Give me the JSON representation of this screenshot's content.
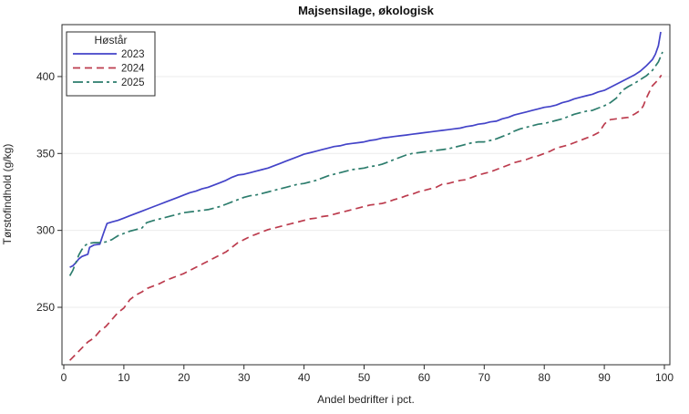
{
  "chart_data": {
    "type": "line",
    "title": "Majsensilage, økologisk",
    "xlabel": "Andel bedrifter i pct.",
    "ylabel": "Tørstofindhold (g/kg)",
    "xlim": [
      0,
      100
    ],
    "ylim": [
      212,
      434
    ],
    "x_ticks": [
      0,
      10,
      20,
      30,
      40,
      50,
      60,
      70,
      80,
      90,
      100
    ],
    "y_ticks": [
      250,
      300,
      350,
      400
    ],
    "grid": "horizontal-only",
    "legend_title": "Høstår",
    "legend_position": "top-left-inside",
    "colors": {
      "axis_line": "#2b2b2b",
      "grid_line": "#ebebeb",
      "text": "#262626",
      "background": "#ffffff",
      "series_2023": "#4343c8",
      "series_2024": "#bc3c4e",
      "series_2025": "#2d7d6d"
    },
    "series": [
      {
        "name": "2023",
        "color": "#4343c8",
        "dash": "solid",
        "points": [
          [
            1,
            276
          ],
          [
            1.5,
            277
          ],
          [
            2,
            279
          ],
          [
            2.5,
            281.5
          ],
          [
            3,
            283
          ],
          [
            4,
            284.5
          ],
          [
            4.3,
            289
          ],
          [
            5,
            290.5
          ],
          [
            6,
            291
          ],
          [
            6.6,
            298
          ],
          [
            7.2,
            304.5
          ],
          [
            8,
            305.5
          ],
          [
            9,
            306.5
          ],
          [
            10,
            308
          ],
          [
            11,
            309.5
          ],
          [
            12,
            311
          ],
          [
            13,
            312.5
          ],
          [
            14,
            314
          ],
          [
            15,
            315.5
          ],
          [
            16,
            317
          ],
          [
            17,
            318.5
          ],
          [
            18,
            320
          ],
          [
            19,
            321.5
          ],
          [
            20,
            323
          ],
          [
            21,
            324.5
          ],
          [
            22,
            325.5
          ],
          [
            23,
            327
          ],
          [
            24,
            328
          ],
          [
            25,
            329.5
          ],
          [
            26,
            331
          ],
          [
            27,
            332.5
          ],
          [
            28,
            334.5
          ],
          [
            29,
            336
          ],
          [
            30,
            336.5
          ],
          [
            31,
            337.5
          ],
          [
            32,
            338.5
          ],
          [
            33,
            339.5
          ],
          [
            34,
            340.5
          ],
          [
            35,
            342
          ],
          [
            36,
            343.5
          ],
          [
            37,
            345
          ],
          [
            38,
            346.5
          ],
          [
            39,
            348
          ],
          [
            40,
            349.5
          ],
          [
            41,
            350.5
          ],
          [
            42,
            351.5
          ],
          [
            43,
            352.5
          ],
          [
            44,
            353.5
          ],
          [
            45,
            354.5
          ],
          [
            46,
            355
          ],
          [
            47,
            356
          ],
          [
            48,
            356.5
          ],
          [
            49,
            357
          ],
          [
            50,
            357.5
          ],
          [
            51,
            358.5
          ],
          [
            52,
            359
          ],
          [
            53,
            360
          ],
          [
            54,
            360.5
          ],
          [
            55,
            361
          ],
          [
            56,
            361.5
          ],
          [
            57,
            362
          ],
          [
            58,
            362.5
          ],
          [
            59,
            363
          ],
          [
            60,
            363.5
          ],
          [
            61,
            364
          ],
          [
            62,
            364.5
          ],
          [
            63,
            365
          ],
          [
            64,
            365.5
          ],
          [
            65,
            366
          ],
          [
            66,
            366.5
          ],
          [
            67,
            367.5
          ],
          [
            68,
            368
          ],
          [
            69,
            369
          ],
          [
            70,
            369.5
          ],
          [
            71,
            370.5
          ],
          [
            72,
            371
          ],
          [
            73,
            372.5
          ],
          [
            74,
            373.5
          ],
          [
            75,
            375
          ],
          [
            76,
            376
          ],
          [
            77,
            377
          ],
          [
            78,
            378
          ],
          [
            79,
            379
          ],
          [
            80,
            380
          ],
          [
            81,
            380.5
          ],
          [
            82,
            381.5
          ],
          [
            83,
            383
          ],
          [
            84,
            384
          ],
          [
            85,
            385.5
          ],
          [
            86,
            386.5
          ],
          [
            87,
            387.5
          ],
          [
            88,
            388.5
          ],
          [
            89,
            390
          ],
          [
            90,
            391
          ],
          [
            91,
            393
          ],
          [
            92,
            395
          ],
          [
            93,
            397
          ],
          [
            94,
            399
          ],
          [
            95,
            401
          ],
          [
            96,
            403.5
          ],
          [
            97,
            407
          ],
          [
            98,
            411
          ],
          [
            98.5,
            414.5
          ],
          [
            99,
            420
          ],
          [
            99.4,
            429
          ]
        ]
      },
      {
        "name": "2024",
        "color": "#bc3c4e",
        "dash": "dashed",
        "points": [
          [
            1,
            215.5
          ],
          [
            2,
            219.5
          ],
          [
            3,
            223.5
          ],
          [
            4,
            227.5
          ],
          [
            5,
            230
          ],
          [
            6,
            234.5
          ],
          [
            7,
            237.5
          ],
          [
            8,
            242
          ],
          [
            9,
            246.5
          ],
          [
            10,
            249.5
          ],
          [
            11,
            255
          ],
          [
            12,
            258
          ],
          [
            13,
            260
          ],
          [
            14,
            262.5
          ],
          [
            15,
            264
          ],
          [
            16,
            265.5
          ],
          [
            17,
            267.5
          ],
          [
            18,
            269
          ],
          [
            19,
            270.5
          ],
          [
            20,
            272
          ],
          [
            21,
            274
          ],
          [
            22,
            276
          ],
          [
            23,
            278
          ],
          [
            24,
            280
          ],
          [
            25,
            282
          ],
          [
            26,
            284
          ],
          [
            27,
            286
          ],
          [
            28,
            289
          ],
          [
            29,
            292
          ],
          [
            30,
            294
          ],
          [
            31,
            296
          ],
          [
            32,
            297.5
          ],
          [
            33,
            299
          ],
          [
            34,
            300.5
          ],
          [
            35,
            301.5
          ],
          [
            36,
            302.5
          ],
          [
            37,
            303.5
          ],
          [
            38,
            304.5
          ],
          [
            39,
            305.5
          ],
          [
            40,
            306.5
          ],
          [
            41,
            307.5
          ],
          [
            42,
            308
          ],
          [
            43,
            309
          ],
          [
            44,
            309.5
          ],
          [
            45,
            310.5
          ],
          [
            46,
            311.5
          ],
          [
            47,
            312.5
          ],
          [
            48,
            313.5
          ],
          [
            49,
            314.5
          ],
          [
            50,
            315.5
          ],
          [
            51,
            316.5
          ],
          [
            52,
            317
          ],
          [
            53,
            317.5
          ],
          [
            54,
            318.5
          ],
          [
            55,
            320
          ],
          [
            56,
            321
          ],
          [
            57,
            322.5
          ],
          [
            58,
            323.5
          ],
          [
            59,
            325
          ],
          [
            60,
            326
          ],
          [
            61,
            327
          ],
          [
            62,
            328
          ],
          [
            63,
            330
          ],
          [
            64,
            330.5
          ],
          [
            65,
            331.5
          ],
          [
            66,
            332.5
          ],
          [
            67,
            333
          ],
          [
            68,
            334.5
          ],
          [
            69,
            336
          ],
          [
            70,
            337
          ],
          [
            71,
            338
          ],
          [
            72,
            339.5
          ],
          [
            73,
            341
          ],
          [
            74,
            342.5
          ],
          [
            75,
            344
          ],
          [
            76,
            345
          ],
          [
            77,
            346
          ],
          [
            78,
            347.5
          ],
          [
            79,
            348.5
          ],
          [
            80,
            350
          ],
          [
            81,
            351.5
          ],
          [
            82,
            353.5
          ],
          [
            83,
            354.5
          ],
          [
            84,
            355.5
          ],
          [
            85,
            357
          ],
          [
            86,
            358.5
          ],
          [
            87,
            360
          ],
          [
            88,
            361.5
          ],
          [
            89,
            363.5
          ],
          [
            89.5,
            366
          ],
          [
            90,
            369
          ],
          [
            90.5,
            371
          ],
          [
            91,
            372
          ],
          [
            92,
            372.5
          ],
          [
            93,
            373
          ],
          [
            94,
            373.5
          ],
          [
            95,
            375.5
          ],
          [
            96,
            378
          ],
          [
            96.5,
            381
          ],
          [
            97,
            386
          ],
          [
            97.5,
            390
          ],
          [
            98,
            394
          ],
          [
            98.5,
            396
          ],
          [
            99,
            398
          ],
          [
            99.5,
            401
          ]
        ]
      },
      {
        "name": "2025",
        "color": "#2d7d6d",
        "dash": "dash-dot",
        "points": [
          [
            1,
            270.5
          ],
          [
            1.5,
            274
          ],
          [
            2,
            279
          ],
          [
            2.5,
            284
          ],
          [
            3,
            287.5
          ],
          [
            3.5,
            290
          ],
          [
            4,
            291.5
          ],
          [
            5,
            292
          ],
          [
            6,
            292
          ],
          [
            7,
            292.5
          ],
          [
            8,
            294
          ],
          [
            9,
            296.5
          ],
          [
            10,
            298
          ],
          [
            11,
            299.5
          ],
          [
            12,
            300.5
          ],
          [
            13,
            301.5
          ],
          [
            13.8,
            305
          ],
          [
            15,
            306.5
          ],
          [
            16,
            307.5
          ],
          [
            17,
            308.5
          ],
          [
            18,
            309.5
          ],
          [
            19,
            310.5
          ],
          [
            20,
            311.5
          ],
          [
            21,
            312
          ],
          [
            22,
            312.5
          ],
          [
            23,
            313
          ],
          [
            24,
            313.5
          ],
          [
            25,
            314.5
          ],
          [
            26,
            315.5
          ],
          [
            27,
            317
          ],
          [
            28,
            318.5
          ],
          [
            29,
            320
          ],
          [
            30,
            321.5
          ],
          [
            31,
            322.5
          ],
          [
            32,
            323
          ],
          [
            33,
            324
          ],
          [
            34,
            325
          ],
          [
            35,
            326
          ],
          [
            36,
            327
          ],
          [
            37,
            328
          ],
          [
            38,
            329
          ],
          [
            39,
            330
          ],
          [
            40,
            330.5
          ],
          [
            41,
            331.5
          ],
          [
            42,
            332.5
          ],
          [
            43,
            334
          ],
          [
            44,
            335.5
          ],
          [
            45,
            336.5
          ],
          [
            46,
            337.5
          ],
          [
            47,
            338.5
          ],
          [
            48,
            339.5
          ],
          [
            49,
            340
          ],
          [
            50,
            340.5
          ],
          [
            51,
            341.5
          ],
          [
            52,
            342
          ],
          [
            53,
            343
          ],
          [
            54,
            344.5
          ],
          [
            55,
            346
          ],
          [
            56,
            347.5
          ],
          [
            57,
            349
          ],
          [
            58,
            350
          ],
          [
            59,
            350.5
          ],
          [
            60,
            351
          ],
          [
            61,
            351.5
          ],
          [
            62,
            352
          ],
          [
            63,
            352.5
          ],
          [
            64,
            353
          ],
          [
            65,
            354
          ],
          [
            66,
            355
          ],
          [
            67,
            356
          ],
          [
            68,
            357
          ],
          [
            69,
            357.5
          ],
          [
            70,
            357.5
          ],
          [
            71,
            358.5
          ],
          [
            72,
            359.5
          ],
          [
            73,
            361
          ],
          [
            74,
            362.5
          ],
          [
            75,
            364.5
          ],
          [
            76,
            366
          ],
          [
            77,
            367
          ],
          [
            78,
            368
          ],
          [
            79,
            369
          ],
          [
            80,
            369.5
          ],
          [
            81,
            370.5
          ],
          [
            82,
            371.5
          ],
          [
            83,
            372.5
          ],
          [
            84,
            374
          ],
          [
            85,
            375.5
          ],
          [
            86,
            376.5
          ],
          [
            87,
            377.5
          ],
          [
            88,
            378
          ],
          [
            89,
            379.5
          ],
          [
            90,
            381
          ],
          [
            91,
            383
          ],
          [
            92,
            386
          ],
          [
            93,
            391
          ],
          [
            94,
            393.5
          ],
          [
            95,
            395.5
          ],
          [
            96,
            398
          ],
          [
            97,
            400.5
          ],
          [
            98,
            404
          ],
          [
            99,
            409.5
          ],
          [
            99.7,
            416
          ]
        ]
      }
    ]
  }
}
